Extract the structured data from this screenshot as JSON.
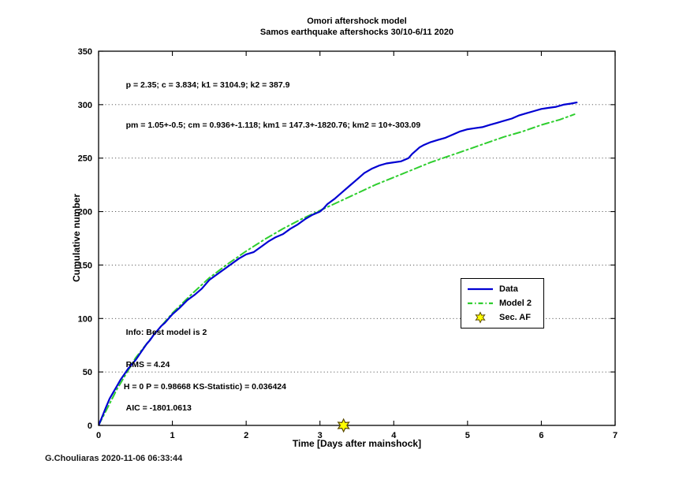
{
  "figure": {
    "credit": "G.Chouliaras 2020-11-06 06:33:44"
  },
  "chart_data": {
    "type": "line",
    "title": "Omori aftershock model",
    "subtitle": "Samos earthquake aftershocks 30/10-6/11 2020",
    "xlabel": "Time [Days after mainshock]",
    "ylabel": "Cumulative number",
    "xlim": [
      0,
      7
    ],
    "ylim": [
      0,
      350
    ],
    "xticks": [
      0,
      1,
      2,
      3,
      4,
      5,
      6,
      7
    ],
    "yticks": [
      0,
      50,
      100,
      150,
      200,
      250,
      300,
      350
    ],
    "grid": "horizontal dotted",
    "colors": {
      "data_line": "#0000d2",
      "model_line": "#2fce2f",
      "marker_fill": "#ffff00",
      "marker_edge": "#5a4a00",
      "grid_line": "#4a4a4a"
    },
    "legend": {
      "position": "middle-right",
      "entries": [
        {
          "label": "Data",
          "type": "line",
          "style": "solid",
          "color": "#0000d2"
        },
        {
          "label": "Model 2",
          "type": "line",
          "style": "dash-dot",
          "color": "#2fce2f"
        },
        {
          "label": "Sec. AF",
          "type": "marker",
          "style": "hexagram",
          "color": "#ffff00"
        }
      ]
    },
    "series": [
      {
        "name": "Data",
        "color": "#0000d2",
        "style": "solid",
        "width": 2.2,
        "points": [
          [
            0,
            0
          ],
          [
            0.03,
            5
          ],
          [
            0.06,
            10
          ],
          [
            0.1,
            17
          ],
          [
            0.15,
            25
          ],
          [
            0.2,
            31
          ],
          [
            0.25,
            37
          ],
          [
            0.3,
            43
          ],
          [
            0.35,
            48
          ],
          [
            0.4,
            53
          ],
          [
            0.45,
            57
          ],
          [
            0.5,
            61
          ],
          [
            0.55,
            66
          ],
          [
            0.6,
            71
          ],
          [
            0.65,
            76
          ],
          [
            0.7,
            80
          ],
          [
            0.75,
            85
          ],
          [
            0.8,
            89
          ],
          [
            0.85,
            93
          ],
          [
            0.9,
            96
          ],
          [
            0.95,
            100
          ],
          [
            1,
            104
          ],
          [
            1.05,
            107
          ],
          [
            1.1,
            110
          ],
          [
            1.2,
            117
          ],
          [
            1.3,
            122
          ],
          [
            1.4,
            128
          ],
          [
            1.5,
            136
          ],
          [
            1.6,
            141
          ],
          [
            1.7,
            146
          ],
          [
            1.8,
            151
          ],
          [
            1.9,
            156
          ],
          [
            2,
            160
          ],
          [
            2.1,
            162
          ],
          [
            2.2,
            167
          ],
          [
            2.3,
            172
          ],
          [
            2.4,
            176
          ],
          [
            2.5,
            179
          ],
          [
            2.6,
            184
          ],
          [
            2.7,
            188
          ],
          [
            2.8,
            193
          ],
          [
            2.9,
            197
          ],
          [
            3,
            200
          ],
          [
            3.05,
            203
          ],
          [
            3.1,
            207
          ],
          [
            3.2,
            212
          ],
          [
            3.3,
            218
          ],
          [
            3.4,
            224
          ],
          [
            3.5,
            230
          ],
          [
            3.6,
            236
          ],
          [
            3.7,
            240
          ],
          [
            3.8,
            243
          ],
          [
            3.9,
            245
          ],
          [
            4,
            246
          ],
          [
            4.1,
            247
          ],
          [
            4.2,
            250
          ],
          [
            4.25,
            254
          ],
          [
            4.3,
            257
          ],
          [
            4.35,
            260
          ],
          [
            4.4,
            262
          ],
          [
            4.5,
            265
          ],
          [
            4.6,
            267
          ],
          [
            4.7,
            269
          ],
          [
            4.8,
            272
          ],
          [
            4.9,
            275
          ],
          [
            5,
            277
          ],
          [
            5.1,
            278
          ],
          [
            5.2,
            279
          ],
          [
            5.3,
            281
          ],
          [
            5.4,
            283
          ],
          [
            5.5,
            285
          ],
          [
            5.6,
            287
          ],
          [
            5.7,
            290
          ],
          [
            5.8,
            292
          ],
          [
            5.9,
            294
          ],
          [
            6,
            296
          ],
          [
            6.1,
            297
          ],
          [
            6.2,
            298
          ],
          [
            6.3,
            300
          ],
          [
            6.4,
            301
          ],
          [
            6.48,
            302
          ]
        ]
      },
      {
        "name": "Model 2",
        "color": "#2fce2f",
        "style": "dash-dot",
        "width": 2,
        "points": [
          [
            0,
            0
          ],
          [
            0.25,
            34
          ],
          [
            0.5,
            63
          ],
          [
            0.75,
            85
          ],
          [
            1,
            105
          ],
          [
            1.25,
            122
          ],
          [
            1.5,
            138
          ],
          [
            1.75,
            151
          ],
          [
            2,
            163
          ],
          [
            2.25,
            174
          ],
          [
            2.5,
            184
          ],
          [
            2.75,
            193
          ],
          [
            3,
            201
          ],
          [
            3.25,
            209
          ],
          [
            3.5,
            217
          ],
          [
            3.75,
            225
          ],
          [
            4,
            232
          ],
          [
            4.25,
            239
          ],
          [
            4.5,
            246
          ],
          [
            4.75,
            252
          ],
          [
            5,
            258
          ],
          [
            5.25,
            264
          ],
          [
            5.5,
            270
          ],
          [
            5.75,
            275
          ],
          [
            6,
            281
          ],
          [
            6.25,
            286
          ],
          [
            6.45,
            291
          ]
        ]
      }
    ],
    "markers": [
      {
        "label": "Sec. AF",
        "shape": "hexagram",
        "x": 3.32,
        "y": 0
      }
    ],
    "annotations": [
      {
        "text": "p = 2.35; c = 3.834; k1 = 3104.9; k2 = 387.9",
        "x": 0.37,
        "y": 318
      },
      {
        "text": "pm = 1.05+-0.5; cm = 0.936+-1.118; km1 = 147.3+-1820.76; km2 = 10+-303.09",
        "x": 0.37,
        "y": 281
      },
      {
        "text": "Info: Best model is 2",
        "x": 0.37,
        "y": 87
      },
      {
        "text": "RMS = 4.24",
        "x": 0.37,
        "y": 57
      },
      {
        "text": "H = 0 P = 0.98668 KS-Statistic) = 0.036424",
        "x": 0.34,
        "y": 36
      },
      {
        "text": "AIC = -1801.0613",
        "x": 0.37,
        "y": 16
      }
    ]
  }
}
